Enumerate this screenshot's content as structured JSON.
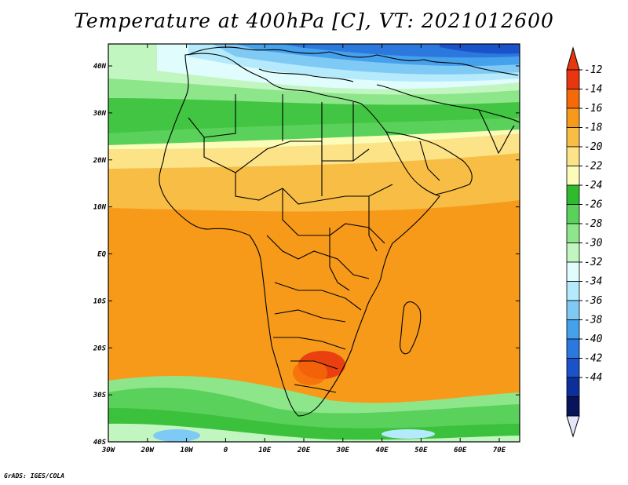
{
  "title": "Temperature at 400hPa [C], VT: 2021012600",
  "footer": "GrADS: IGES/COLA",
  "map": {
    "variable": "Temperature",
    "level": "400hPa",
    "units": "C",
    "valid_time": "2021012600",
    "lat_labels": [
      "40N",
      "30N",
      "20N",
      "10N",
      "EQ",
      "10S",
      "20S",
      "30S",
      "40S"
    ],
    "lon_labels": [
      "30W",
      "20W",
      "10W",
      "0",
      "10E",
      "20E",
      "30E",
      "40E",
      "50E",
      "60E",
      "70E"
    ]
  },
  "colorbar": {
    "labels": [
      "-12",
      "-14",
      "-16",
      "-18",
      "-20",
      "-22",
      "-24",
      "-26",
      "-28",
      "-30",
      "-32",
      "-34",
      "-36",
      "-38",
      "-40",
      "-42",
      "-44"
    ],
    "colors": [
      "#e8360f",
      "#f56a07",
      "#f79a1a",
      "#f8bd45",
      "#fce387",
      "#fcfcb9",
      "#2fbb2f",
      "#5ad15a",
      "#8ee68a",
      "#c1f6c1",
      "#e0fcfd",
      "#b4eafb",
      "#7fc9f5",
      "#46a1ec",
      "#2b79de",
      "#1a52ca",
      "#0d2f9b",
      "#09135c"
    ],
    "top_triangle_color": "#e8360f",
    "bottom_triangle_color": "#e6e6fb"
  }
}
